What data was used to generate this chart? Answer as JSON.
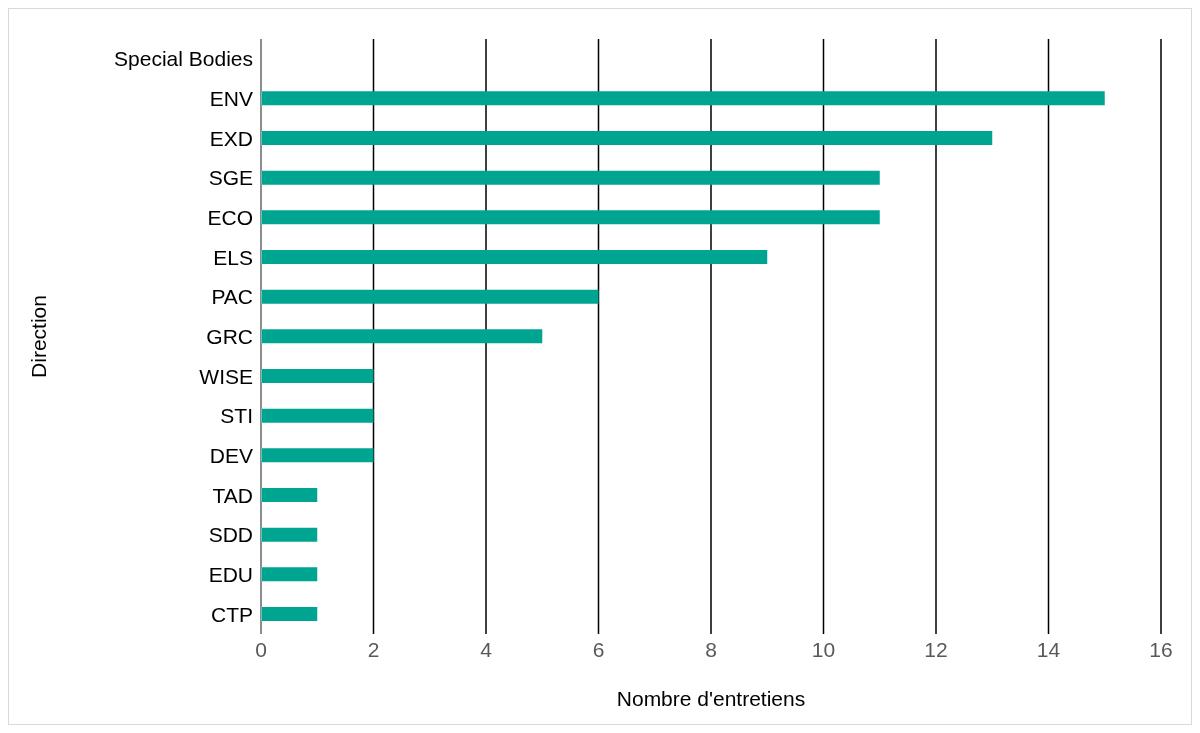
{
  "chart_data": {
    "type": "bar",
    "orientation": "horizontal",
    "xlabel": "Nombre d'entretiens",
    "ylabel": "Direction",
    "categories": [
      "Special Bodies",
      "ENV",
      "EXD",
      "SGE",
      "ECO",
      "ELS",
      "PAC",
      "GRC",
      "WISE",
      "STI",
      "DEV",
      "TAD",
      "SDD",
      "EDU",
      "CTP"
    ],
    "values": [
      0,
      15,
      13,
      11,
      11,
      9,
      6,
      5,
      2,
      2,
      2,
      1,
      1,
      1,
      1
    ],
    "color": "#00a591",
    "xlim": [
      0,
      16
    ],
    "xticks": [
      0,
      2,
      4,
      6,
      8,
      10,
      12,
      14,
      16
    ],
    "grid": "x",
    "legend": false
  }
}
